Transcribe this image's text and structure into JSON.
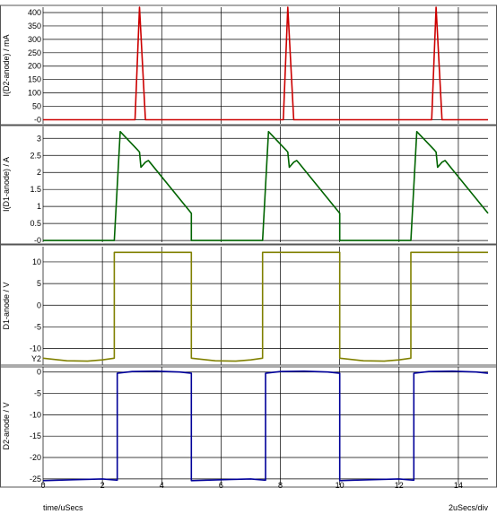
{
  "colors": {
    "grid": "#000000",
    "panel_border": "#555555"
  },
  "x_axis": {
    "range": [
      0,
      15
    ],
    "ticks": [
      0,
      2,
      4,
      6,
      8,
      10,
      12,
      14
    ],
    "tick_labels": [
      "0",
      "2",
      "4",
      "6",
      "8",
      "10",
      "12",
      "14"
    ],
    "label": "time/uSecs",
    "scale_label": "2uSecs/div"
  },
  "chart_data": [
    {
      "type": "line",
      "ylabel": "I(D2-anode) / mA",
      "color": "#cc0000",
      "ylim": [
        -15,
        420
      ],
      "yticks": [
        400,
        350,
        300,
        250,
        200,
        150,
        100,
        50,
        0
      ],
      "ytick_labels": [
        "400",
        "350",
        "300",
        "250",
        "200",
        "150",
        "100",
        "50",
        "-0"
      ],
      "x": [
        0,
        3.1,
        3.25,
        3.45,
        8.1,
        8.25,
        8.45,
        13.1,
        13.25,
        13.45,
        15
      ],
      "y": [
        0,
        0,
        420,
        0,
        0,
        420,
        0,
        0,
        420,
        0,
        0
      ]
    },
    {
      "type": "line",
      "ylabel": "I(D1-anode) / A",
      "color": "#006400",
      "ylim": [
        -0.05,
        3.35
      ],
      "yticks": [
        3,
        2.5,
        2,
        1.5,
        1,
        0.5,
        0
      ],
      "ytick_labels": [
        "3",
        "2.5",
        "2",
        "1.5",
        "1",
        "0.5",
        "-0"
      ],
      "x": [
        0,
        2.4,
        2.6,
        3.2,
        3.25,
        3.3,
        3.45,
        3.55,
        3.6,
        5.0,
        5.0,
        7.4,
        7.6,
        8.2,
        8.25,
        8.3,
        8.45,
        8.55,
        8.6,
        10.0,
        10.0,
        12.4,
        12.6,
        13.2,
        13.25,
        13.3,
        13.45,
        13.55,
        13.6,
        15.0
      ],
      "y": [
        0,
        0,
        3.2,
        2.65,
        2.6,
        2.15,
        2.3,
        2.35,
        2.3,
        0.8,
        0,
        0,
        3.2,
        2.65,
        2.6,
        2.15,
        2.3,
        2.35,
        2.3,
        0.8,
        0,
        0,
        3.2,
        2.65,
        2.6,
        2.15,
        2.3,
        2.35,
        2.3,
        0.8
      ]
    },
    {
      "type": "line",
      "ylabel": "D1-anode / V",
      "color": "#808000",
      "ylim": [
        -13.8,
        13.5
      ],
      "yticks": [
        10,
        5,
        0,
        -5,
        -10
      ],
      "ytick_labels": [
        "10",
        "5",
        "0",
        "-5",
        "-10"
      ],
      "extra_label": "Y2",
      "x": [
        0,
        0.8,
        1.5,
        2.0,
        2.4,
        2.4,
        5.0,
        5.0,
        5.8,
        6.5,
        7.0,
        7.4,
        7.4,
        10.0,
        10.0,
        10.8,
        11.5,
        12.0,
        12.4,
        12.4,
        15.0
      ],
      "y": [
        -12.2,
        -12.8,
        -12.9,
        -12.6,
        -12.2,
        12.2,
        12.2,
        -12.2,
        -12.8,
        -12.9,
        -12.6,
        -12.2,
        12.2,
        12.2,
        -12.2,
        -12.8,
        -12.9,
        -12.6,
        -12.2,
        12.2,
        12.2
      ]
    },
    {
      "type": "line",
      "ylabel": "D2-anode / V",
      "color": "#000099",
      "ylim": [
        -26.5,
        1.2
      ],
      "yticks": [
        0,
        -5,
        -10,
        -15,
        -20,
        -25
      ],
      "ytick_labels": [
        "0",
        "-5",
        "-10",
        "-15",
        "-20",
        "-25"
      ],
      "x": [
        0,
        1.0,
        2.0,
        2.5,
        2.5,
        3.0,
        3.8,
        4.6,
        5.0,
        5.0,
        6.0,
        7.0,
        7.5,
        7.5,
        8.0,
        8.8,
        9.6,
        10.0,
        10.0,
        11.0,
        12.0,
        12.5,
        12.5,
        13.0,
        13.8,
        14.6,
        15.0
      ],
      "y": [
        -25.4,
        -25.2,
        -25.0,
        -25.3,
        -0.3,
        0.1,
        0.2,
        0.0,
        -0.3,
        -25.4,
        -25.2,
        -25.0,
        -25.3,
        -0.3,
        0.1,
        0.2,
        0.0,
        -0.3,
        -25.4,
        -25.2,
        -25.0,
        -25.3,
        -0.3,
        0.1,
        0.2,
        0.0,
        -0.3
      ]
    }
  ]
}
